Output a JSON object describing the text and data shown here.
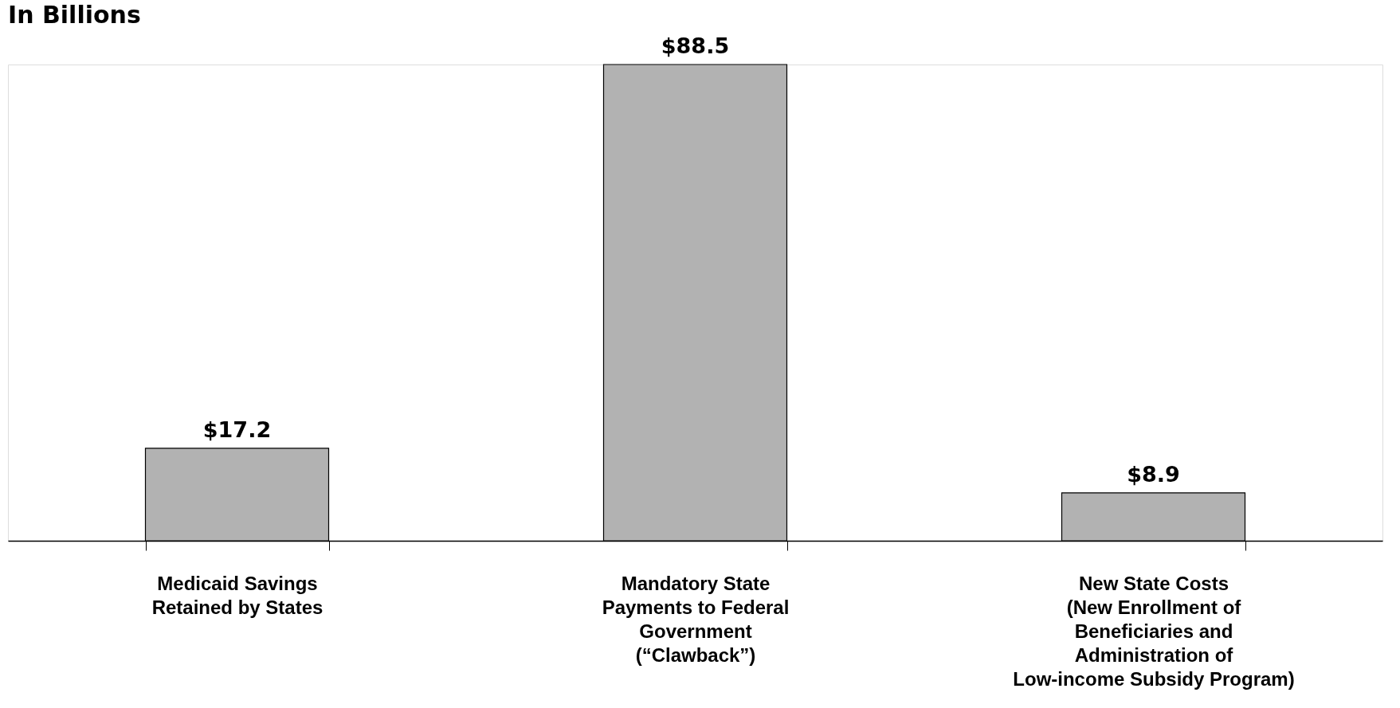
{
  "chart_data": {
    "type": "bar",
    "ylabel": "In Billions",
    "categories": [
      "Medicaid Savings\nRetained by States",
      "Mandatory State\nPayments to Federal\nGovernment\n(“Clawback”)",
      "New State Costs\n(New Enrollment of\nBeneficiaries and\nAdministration of\nLow-income Subsidy Program)"
    ],
    "values": [
      17.2,
      88.5,
      8.9
    ],
    "value_labels": [
      "$17.2",
      "$88.5",
      "$8.9"
    ],
    "color": "#b2b2b2"
  }
}
